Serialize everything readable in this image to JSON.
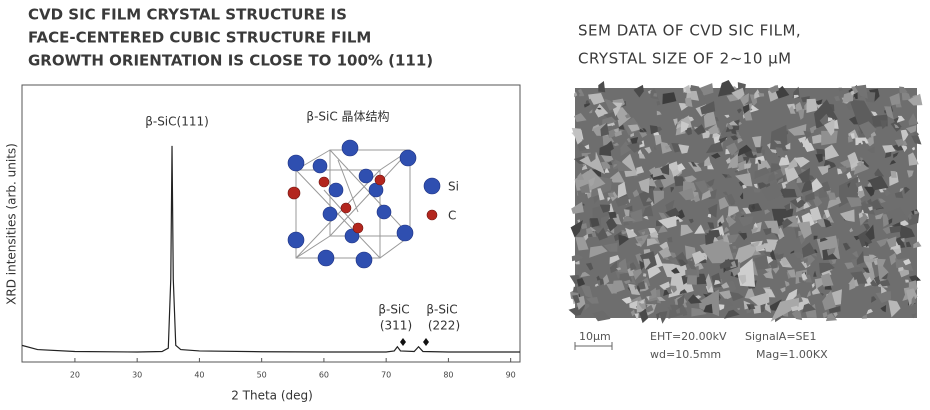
{
  "header": {
    "left_lines": [
      "CVD SIC FILM CRYSTAL STRUCTURE IS",
      "FACE-CENTERED CUBIC STRUCTURE FILM",
      "GROWTH ORIENTATION IS CLOSE TO 100% (111)"
    ],
    "right_lines": [
      "SEM DATA OF CVD SIC FILM,",
      "CRYSTAL SIZE OF 2~10 μM"
    ]
  },
  "chart_data": {
    "type": "line",
    "x_label": "2 Theta (deg)",
    "y_label": "XRD intensities (arb. units)",
    "annotations": [
      "β-SiC(111)",
      "β-SiC",
      "(311)",
      "β-SiC",
      "(222)"
    ],
    "inset": {
      "title": "β-SiC 晶体结构",
      "legend": [
        "Si",
        "C"
      ]
    },
    "x": [
      11.5,
      14,
      20,
      30,
      34,
      35,
      35.4,
      35.6,
      35.8,
      36.2,
      37,
      40,
      50,
      60,
      70,
      71.3,
      71.8,
      72.3,
      74.5,
      75.2,
      75.9,
      80,
      91.5
    ],
    "values": [
      6,
      4.5,
      3.8,
      3.6,
      3.8,
      5,
      30,
      78,
      30,
      6,
      4.5,
      4,
      3.7,
      3.6,
      3.6,
      4,
      5.5,
      4,
      3.8,
      5.5,
      3.8,
      3.6,
      3.6
    ],
    "color": "#222222",
    "xlim": [
      11.5,
      91.5
    ],
    "xticks": [
      20,
      30,
      40,
      50,
      60,
      70,
      80,
      90
    ],
    "ylim": [
      0,
      100
    ]
  },
  "sem": {
    "scale": "10μm",
    "eht": "EHT=20.00kV",
    "signal": "SignalA=SE1",
    "wd": "wd=10.5mm",
    "mag": "Mag=1.00KX"
  }
}
